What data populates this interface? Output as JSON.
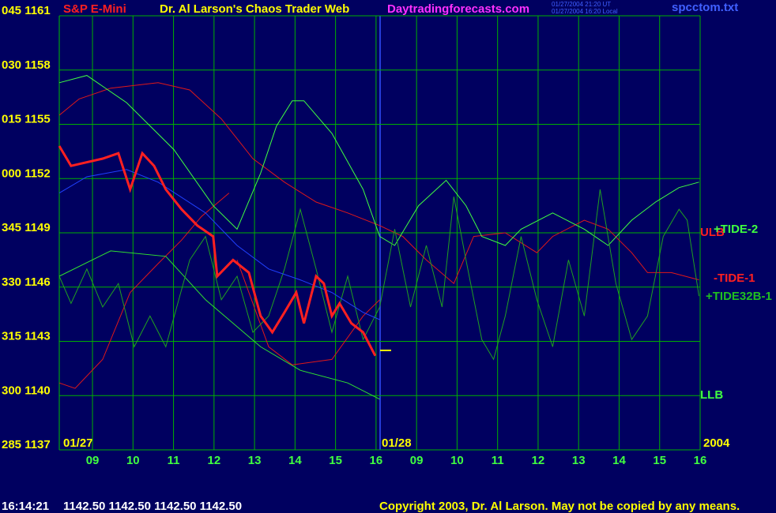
{
  "chart_data": {
    "type": "line",
    "title": "Dr. Al Larson's Chaos Trader Web",
    "subtitle": "S&P E-Mini",
    "site": "Daytradingforecasts.com",
    "timestamps": [
      "01/27/2004 21:20 UT",
      "01/27/2004 16:20 Local"
    ],
    "file": "spcctom.txt",
    "dates": [
      "01/27",
      "01/28",
      "2004"
    ],
    "status_time": "16:14:21",
    "status_prices": "1142.50 1142.50 1142.50 1142.50",
    "copyright": "Copyright 2003, Dr. Al Larson. May not be copied by any means.",
    "xlim": [
      8.18,
      24
    ],
    "ylim": [
      1137,
      1161
    ],
    "grid": true,
    "xticks": [
      {
        "value": 9,
        "label": "09"
      },
      10,
      11,
      12,
      13,
      14,
      15,
      16,
      {
        "value": 17,
        "label": "09"
      },
      {
        "value": 18,
        "label": "10"
      },
      {
        "value": 19,
        "label": "11"
      },
      {
        "value": 20,
        "label": "12"
      },
      {
        "value": 21,
        "label": "13"
      },
      {
        "value": 22,
        "label": "14"
      },
      {
        "value": 23,
        "label": "15"
      },
      {
        "value": 24,
        "label": "16"
      }
    ],
    "yticks": [
      {
        "value": 1161,
        "label": "045 1161"
      },
      {
        "value": 1158,
        "label": "030 1158"
      },
      {
        "value": 1155,
        "label": "015 1155"
      },
      {
        "value": 1152,
        "label": "000 1152"
      },
      {
        "value": 1149,
        "label": "345 1149"
      },
      {
        "value": 1146,
        "label": "330 1146"
      },
      {
        "value": 1143,
        "label": "315 1143"
      },
      {
        "value": 1140,
        "label": "300 1140"
      },
      {
        "value": 1137,
        "label": "285 1137"
      }
    ],
    "last_price": 1142.5,
    "last_color": "#ffff00",
    "series": [
      {
        "name": "ULB",
        "color": "#e01818",
        "x": [
          8.18,
          8.67,
          9.45,
          10.62,
          11.4,
          12.18,
          12.96,
          13.74,
          14.52,
          15.3,
          16.09
        ],
        "values": [
          1155.5,
          1156.4,
          1157.0,
          1157.3,
          1156.9,
          1155.3,
          1153.1,
          1151.8,
          1150.7,
          1150.1,
          1149.4
        ]
      },
      {
        "name": "-TIDE-1",
        "color": "#e01818",
        "x": [
          16.09,
          16.66,
          17.24,
          17.92,
          18.41,
          19.19,
          19.97,
          20.36,
          21.14,
          21.73,
          22.31,
          22.7,
          23.29,
          23.97
        ],
        "values": [
          1149.4,
          1148.8,
          1147.5,
          1146.2,
          1148.8,
          1149.0,
          1147.9,
          1148.8,
          1149.7,
          1149.2,
          1147.9,
          1146.8,
          1146.8,
          1146.4
        ]
      },
      {
        "color": "#e01818",
        "x": [
          8.18,
          8.57,
          9.25,
          9.93,
          10.62,
          11.2,
          11.69,
          12.37
        ],
        "values": [
          1140.7,
          1140.4,
          1142.0,
          1145.7,
          1147.3,
          1148.6,
          1149.9,
          1151.2
        ]
      },
      {
        "color": "#e01818",
        "x": [
          12.57,
          13.35,
          13.93,
          14.91,
          15.68,
          16.09
        ],
        "values": [
          1147.5,
          1142.7,
          1141.7,
          1142.0,
          1144.4,
          1145.3
        ]
      },
      {
        "name": "LLB",
        "color": "#30e030",
        "x": [
          8.18,
          9.45,
          10.81,
          11.79,
          13.15,
          14.13,
          15.3,
          16.09
        ],
        "values": [
          1146.6,
          1148.0,
          1147.7,
          1145.3,
          1142.7,
          1141.4,
          1140.7,
          1139.8
        ]
      },
      {
        "name": "+TIDE-2",
        "color": "#40ff40",
        "x": [
          8.18,
          8.86,
          9.84,
          11.01,
          11.98,
          12.57,
          13.15,
          13.54,
          13.93,
          14.22,
          14.91,
          15.68,
          16.09,
          16.46,
          17.05,
          17.73,
          18.22,
          18.61,
          19.19,
          19.58,
          20.36,
          21.14,
          21.73,
          22.31,
          22.9,
          23.48,
          23.97
        ],
        "values": [
          1157.3,
          1157.7,
          1156.2,
          1153.6,
          1150.5,
          1149.2,
          1152.3,
          1154.9,
          1156.3,
          1156.3,
          1154.5,
          1151.4,
          1148.8,
          1148.3,
          1150.5,
          1151.9,
          1150.5,
          1148.8,
          1148.3,
          1149.2,
          1150.1,
          1149.2,
          1148.3,
          1149.7,
          1150.7,
          1151.5,
          1151.8
        ]
      },
      {
        "name": "+TIDE32B-1",
        "color": "#20a020",
        "x": [
          8.18,
          8.47,
          8.86,
          9.25,
          9.64,
          10.03,
          10.42,
          10.81,
          11.4,
          11.79,
          12.18,
          12.57,
          12.96,
          13.35,
          13.74,
          14.13,
          14.52,
          14.91,
          15.3,
          15.68,
          16.09,
          16.46,
          16.85,
          17.24,
          17.63,
          17.92,
          18.22,
          18.61,
          18.9,
          19.19,
          19.58,
          19.97,
          20.36,
          20.75,
          21.14,
          21.53,
          21.92,
          22.31,
          22.7,
          23.09,
          23.48,
          23.68,
          23.97
        ],
        "values": [
          1146.6,
          1145.1,
          1147.0,
          1144.9,
          1146.2,
          1142.7,
          1144.4,
          1142.7,
          1147.5,
          1148.8,
          1145.3,
          1146.6,
          1143.5,
          1144.4,
          1147.0,
          1150.3,
          1147.0,
          1143.5,
          1146.6,
          1143.1,
          1144.9,
          1149.2,
          1144.9,
          1148.3,
          1144.9,
          1151.0,
          1147.5,
          1143.1,
          1142.0,
          1144.4,
          1148.8,
          1145.3,
          1142.7,
          1147.5,
          1144.4,
          1151.4,
          1146.2,
          1143.1,
          1144.4,
          1148.8,
          1150.3,
          1149.7,
          1145.5
        ]
      },
      {
        "color": "#2040ff",
        "x": [
          8.18,
          8.86,
          9.84,
          10.62,
          11.79,
          12.57,
          13.35,
          14.13,
          14.91,
          15.68,
          16.09
        ],
        "values": [
          1151.2,
          1152.1,
          1152.5,
          1151.8,
          1150.1,
          1148.3,
          1147.0,
          1146.4,
          1145.7,
          1144.6,
          1144.2
        ]
      },
      {
        "color": "#ff2020",
        "x": [
          8.18,
          8.47,
          8.86,
          9.25,
          9.64,
          9.93,
          10.23,
          10.52,
          10.81,
          11.2,
          11.59,
          11.98,
          12.08,
          12.47,
          12.86,
          13.15,
          13.44,
          13.74,
          14.03,
          14.22,
          14.52,
          14.71,
          14.91,
          15.1,
          15.39,
          15.68,
          15.98
        ],
        "values": [
          1153.8,
          1152.7,
          1152.9,
          1153.1,
          1153.4,
          1151.4,
          1153.4,
          1152.7,
          1151.4,
          1150.3,
          1149.4,
          1148.8,
          1146.6,
          1147.5,
          1146.8,
          1144.4,
          1143.5,
          1144.6,
          1145.7,
          1144.0,
          1146.6,
          1146.2,
          1144.4,
          1145.1,
          1144.0,
          1143.5,
          1142.2
        ]
      }
    ]
  }
}
